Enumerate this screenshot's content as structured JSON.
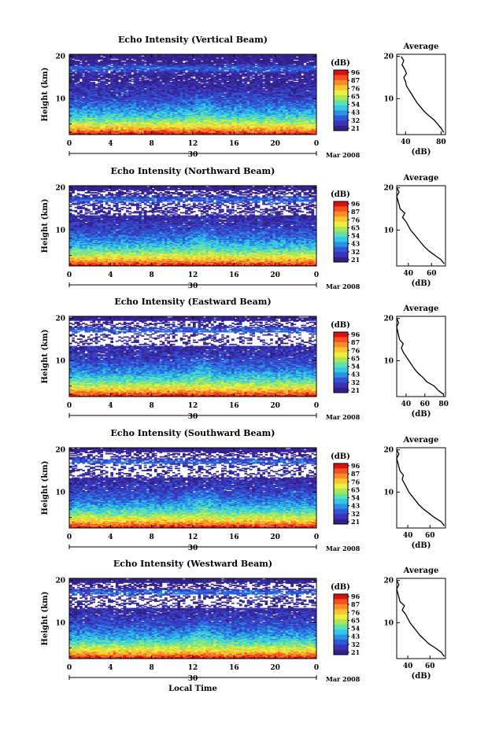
{
  "figure": {
    "xlabel": "Local Time",
    "date_label": "Mar 2008",
    "day_label": "30"
  },
  "colorbar": {
    "label": "(dB)",
    "ticks": [
      "96",
      "87",
      "76",
      "65",
      "54",
      "43",
      "32",
      "21"
    ],
    "colors": [
      "#d8120f",
      "#f55020",
      "#fb8c28",
      "#f6c530",
      "#ecef3c",
      "#a8e858",
      "#5ee0b0",
      "#35c8e6",
      "#2a92e4",
      "#2e58d8",
      "#3a34b8",
      "#34208a"
    ]
  },
  "chart_data": [
    {
      "type": "heatmap",
      "title": "Echo Intensity (Vertical Beam)",
      "xlabel": "",
      "ylabel": "Height (km)",
      "x_ticks": [
        "0",
        "4",
        "8",
        "12",
        "16",
        "20",
        "0"
      ],
      "y_ticks": [
        "20",
        "10"
      ],
      "xlim": [
        0,
        24
      ],
      "ylim": [
        1.5,
        20.5
      ],
      "zlim": [
        21,
        96
      ],
      "color_unit": "dB",
      "gap": 0.05,
      "average": {
        "title": "Average",
        "xlabel": "(dB)",
        "x_ticks": [
          "40",
          "80"
        ],
        "xlim": [
          30,
          85
        ],
        "heights": [
          2,
          3,
          4,
          5,
          6,
          7,
          8,
          9,
          10,
          11,
          12,
          13,
          14,
          15,
          16,
          17,
          18,
          19,
          20
        ],
        "values": [
          83,
          80,
          76,
          72,
          66,
          61,
          57,
          53,
          50,
          47,
          44,
          41,
          40,
          38,
          41,
          39,
          36,
          38,
          35
        ]
      }
    },
    {
      "type": "heatmap",
      "title": "Echo Intensity (Northward Beam)",
      "xlabel": "",
      "ylabel": "Height (km)",
      "x_ticks": [
        "0",
        "4",
        "8",
        "12",
        "16",
        "20",
        "0"
      ],
      "y_ticks": [
        "20",
        "10"
      ],
      "xlim": [
        0,
        24
      ],
      "ylim": [
        1.5,
        20.5
      ],
      "zlim": [
        21,
        96
      ],
      "color_unit": "dB",
      "gap": 0.22,
      "average": {
        "title": "Average",
        "xlabel": "(dB)",
        "x_ticks": [
          "40",
          "60"
        ],
        "xlim": [
          30,
          72
        ],
        "heights": [
          2,
          3,
          4,
          5,
          6,
          7,
          8,
          9,
          10,
          11,
          12,
          13,
          14,
          15,
          16,
          17,
          18,
          19,
          20
        ],
        "values": [
          71,
          68,
          63,
          58,
          54,
          51,
          48,
          45,
          42,
          40,
          38,
          35,
          37,
          33,
          32,
          31,
          30,
          32,
          30
        ]
      }
    },
    {
      "type": "heatmap",
      "title": "Echo Intensity (Eastward Beam)",
      "xlabel": "",
      "ylabel": "Height (km)",
      "x_ticks": [
        "0",
        "4",
        "8",
        "12",
        "16",
        "20",
        "0"
      ],
      "y_ticks": [
        "20",
        "10"
      ],
      "xlim": [
        0,
        24
      ],
      "ylim": [
        1.5,
        20.5
      ],
      "zlim": [
        21,
        96
      ],
      "color_unit": "dB",
      "gap": 0.3,
      "average": {
        "title": "Average",
        "xlabel": "(dB)",
        "x_ticks": [
          "40",
          "60",
          "80"
        ],
        "xlim": [
          30,
          82
        ],
        "heights": [
          2,
          3,
          4,
          5,
          6,
          7,
          8,
          9,
          10,
          11,
          12,
          13,
          14,
          15,
          16,
          17,
          18,
          19,
          20
        ],
        "values": [
          80,
          74,
          70,
          62,
          58,
          53,
          49,
          46,
          43,
          40,
          37,
          35,
          37,
          33,
          32,
          31,
          30,
          32,
          30
        ]
      }
    },
    {
      "type": "heatmap",
      "title": "Echo Intensity (Southward Beam)",
      "xlabel": "",
      "ylabel": "Height (km)",
      "x_ticks": [
        "0",
        "4",
        "8",
        "12",
        "16",
        "20",
        "0"
      ],
      "y_ticks": [
        "20",
        "10"
      ],
      "xlim": [
        0,
        24
      ],
      "ylim": [
        1.5,
        20.5
      ],
      "zlim": [
        21,
        96
      ],
      "color_unit": "dB",
      "gap": 0.28,
      "average": {
        "title": "Average",
        "xlabel": "(dB)",
        "x_ticks": [
          "40",
          "60"
        ],
        "xlim": [
          30,
          74
        ],
        "heights": [
          2,
          3,
          4,
          5,
          6,
          7,
          8,
          9,
          10,
          11,
          12,
          13,
          14,
          15,
          16,
          17,
          18,
          19,
          20
        ],
        "values": [
          73,
          70,
          64,
          59,
          54,
          50,
          47,
          44,
          41,
          39,
          37,
          35,
          36,
          33,
          32,
          31,
          30,
          32,
          30
        ]
      }
    },
    {
      "type": "heatmap",
      "title": "Echo Intensity (Westward Beam)",
      "xlabel": "Local Time",
      "ylabel": "Height (km)",
      "x_ticks": [
        "0",
        "4",
        "8",
        "12",
        "16",
        "20",
        "0"
      ],
      "y_ticks": [
        "20",
        "10"
      ],
      "xlim": [
        0,
        24
      ],
      "ylim": [
        1.5,
        20.5
      ],
      "zlim": [
        21,
        96
      ],
      "color_unit": "dB",
      "gap": 0.26,
      "average": {
        "title": "Average",
        "xlabel": "(dB)",
        "x_ticks": [
          "40",
          "60"
        ],
        "xlim": [
          30,
          74
        ],
        "heights": [
          2,
          3,
          4,
          5,
          6,
          7,
          8,
          9,
          10,
          11,
          12,
          13,
          14,
          15,
          16,
          17,
          18,
          19,
          20
        ],
        "values": [
          73,
          70,
          65,
          59,
          55,
          51,
          48,
          45,
          42,
          40,
          38,
          35,
          37,
          33,
          32,
          31,
          30,
          32,
          30
        ]
      }
    }
  ]
}
